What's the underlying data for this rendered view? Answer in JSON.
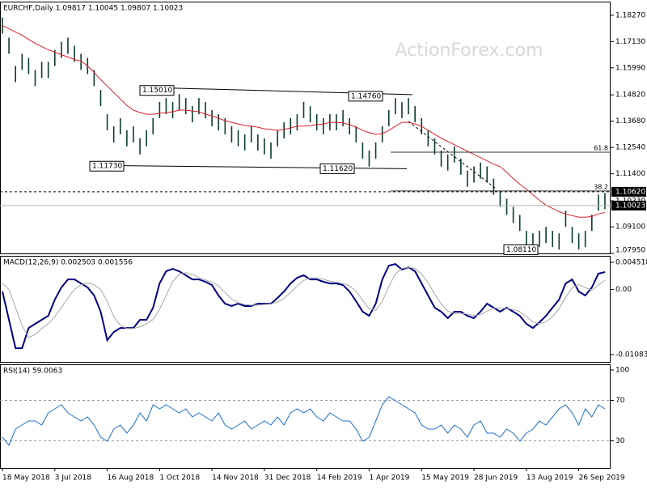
{
  "chart_data": [
    {
      "type": "ohlc",
      "title": "EURCHF,Daily  1.09817 1.10045 1.09807 1.10023",
      "watermark": "ActionForex.com",
      "categories": [
        "18 May 2018",
        null,
        null,
        null,
        null,
        null,
        null,
        null,
        "3 Jul 2018",
        null,
        null,
        null,
        null,
        null,
        null,
        null,
        "16 Aug 2018",
        null,
        null,
        null,
        null,
        null,
        null,
        null,
        "1 Oct 2018",
        null,
        null,
        null,
        null,
        null,
        null,
        null,
        "14 Nov 2018",
        null,
        null,
        null,
        null,
        null,
        null,
        null,
        "31 Dec 2018",
        null,
        null,
        null,
        null,
        null,
        null,
        null,
        "14 Feb 2019",
        null,
        null,
        null,
        null,
        null,
        null,
        null,
        "1 Apr 2019",
        null,
        null,
        null,
        null,
        null,
        null,
        null,
        "15 May 2019",
        null,
        null,
        null,
        null,
        null,
        null,
        null,
        "28 Jun 2019",
        null,
        null,
        null,
        null,
        null,
        null,
        null,
        "13 Aug 2019",
        null,
        null,
        null,
        null,
        null,
        null,
        null,
        "26 Sep 2019",
        null,
        null,
        null,
        null
      ],
      "high": [
        1.1817,
        1.173,
        1.1607,
        1.166,
        1.1642,
        1.159,
        1.1625,
        1.1625,
        1.1677,
        1.1712,
        1.173,
        1.1695,
        1.166,
        1.1642,
        1.159,
        1.1503,
        1.1398,
        1.1346,
        1.1381,
        1.1329,
        1.1346,
        1.1294,
        1.1329,
        1.1381,
        1.1451,
        1.1468,
        1.1451,
        1.1485,
        1.1468,
        1.1433,
        1.1468,
        1.1451,
        1.1416,
        1.1398,
        1.1381,
        1.1346,
        1.1329,
        1.1311,
        1.1346,
        1.1311,
        1.1294,
        1.1276,
        1.1329,
        1.1363,
        1.1381,
        1.1398,
        1.1451,
        1.1433,
        1.1398,
        1.1381,
        1.1398,
        1.1398,
        1.1416,
        1.1381,
        1.1346,
        1.1276,
        1.1241,
        1.1276,
        1.1346,
        1.1416,
        1.1468,
        1.1451,
        1.1468,
        1.1433,
        1.1381,
        1.1329,
        1.1294,
        1.1241,
        1.1224,
        1.1259,
        1.1206,
        1.1154,
        1.1172,
        1.1189,
        1.1172,
        1.1119,
        1.1067,
        1.1032,
        1.0997,
        1.0962,
        1.0893,
        1.0882,
        1.0893,
        1.091,
        1.0893,
        1.0882,
        1.098,
        1.091,
        1.0882,
        1.0893,
        1.0962,
        1.105,
        1.1057
      ],
      "low": [
        1.1747,
        1.166,
        1.1537,
        1.159,
        1.1572,
        1.152,
        1.1555,
        1.1555,
        1.1607,
        1.1642,
        1.166,
        1.1625,
        1.159,
        1.1572,
        1.152,
        1.1433,
        1.1328,
        1.1276,
        1.1311,
        1.1259,
        1.1276,
        1.1224,
        1.1259,
        1.1311,
        1.1381,
        1.1398,
        1.1381,
        1.1415,
        1.1398,
        1.1363,
        1.1398,
        1.1381,
        1.1346,
        1.1328,
        1.1311,
        1.1276,
        1.1259,
        1.1241,
        1.1276,
        1.1241,
        1.1224,
        1.1206,
        1.1259,
        1.1293,
        1.1311,
        1.1328,
        1.1381,
        1.1363,
        1.1328,
        1.1311,
        1.1328,
        1.1328,
        1.1346,
        1.1311,
        1.1276,
        1.1206,
        1.1171,
        1.1206,
        1.1276,
        1.1346,
        1.1398,
        1.1381,
        1.1398,
        1.1363,
        1.1311,
        1.1259,
        1.1224,
        1.1171,
        1.1154,
        1.1189,
        1.1136,
        1.1084,
        1.1102,
        1.1119,
        1.1102,
        1.1049,
        1.0997,
        1.0962,
        1.0927,
        1.0892,
        1.0823,
        1.0812,
        1.0823,
        1.084,
        1.0823,
        1.0812,
        1.091,
        1.084,
        1.0812,
        1.0823,
        1.0892,
        1.098,
        1.0987
      ],
      "bar_color": "#0d3b2e",
      "ma": {
        "color": "#e0202a",
        "values": [
          1.1782,
          1.1768,
          1.1754,
          1.174,
          1.1722,
          1.1705,
          1.1691,
          1.1677,
          1.1667,
          1.1656,
          1.1646,
          1.1635,
          1.1628,
          1.1607,
          1.1579,
          1.1548,
          1.152,
          1.1492,
          1.1464,
          1.1436,
          1.1416,
          1.1405,
          1.1398,
          1.1398,
          1.1402,
          1.1405,
          1.1409,
          1.1416,
          1.1416,
          1.1412,
          1.1409,
          1.1398,
          1.1391,
          1.1381,
          1.137,
          1.1363,
          1.1356,
          1.1349,
          1.1346,
          1.1342,
          1.1335,
          1.1332,
          1.1328,
          1.1332,
          1.1339,
          1.1346,
          1.1346,
          1.1349,
          1.1353,
          1.1356,
          1.1363,
          1.1363,
          1.136,
          1.1353,
          1.1342,
          1.1328,
          1.1318,
          1.1311,
          1.1314,
          1.1328,
          1.1346,
          1.1363,
          1.1363,
          1.1356,
          1.1346,
          1.1328,
          1.1311,
          1.1294,
          1.128,
          1.1266,
          1.1252,
          1.1238,
          1.1224,
          1.121,
          1.1196,
          1.1182,
          1.1171,
          1.1147,
          1.1119,
          1.1095,
          1.1074,
          1.1049,
          1.1025,
          1.1004,
          1.099,
          1.0976,
          1.0966,
          1.0959,
          1.0952,
          1.0952,
          1.0955,
          1.0966,
          1.0973
        ]
      },
      "ylim": [
        1.0795,
        1.1886
      ],
      "yticks": [
        {
          "value": 1.1827,
          "label": "1.18270"
        },
        {
          "value": 1.1713,
          "label": "1.17130"
        },
        {
          "value": 1.1599,
          "label": "1.15990"
        },
        {
          "value": 1.1482,
          "label": "1.14820"
        },
        {
          "value": 1.1368,
          "label": "1.13680"
        },
        {
          "value": 1.1254,
          "label": "1.12540"
        },
        {
          "value": 1.114,
          "label": "1.11400"
        },
        {
          "value": 1.1023,
          "label": "1.10230"
        },
        {
          "value": 1.091,
          "label": "1.09100"
        },
        {
          "value": 1.0795,
          "label": "1.07950"
        }
      ],
      "annotations": [
        "1.15010",
        "1.14760",
        "1.11730",
        "1.11620",
        "1.08110"
      ],
      "fib_labels": [
        "61.8",
        "38.2"
      ],
      "price_tags": [
        "1.10620",
        "1.10023"
      ]
    },
    {
      "type": "line",
      "title": "MACD(12,26,9) 0.002503 0.001556",
      "series": [
        {
          "color": "#000080",
          "values": [
            -0.00034,
            -0.00505,
            -0.00977,
            -0.00977,
            -0.0064,
            -0.00572,
            -0.00505,
            -0.00438,
            -0.00168,
            0.00034,
            0.00168,
            0.00168,
            0.00101,
            0.00034,
            -0.00101,
            -0.0037,
            -0.00842,
            -0.00707,
            -0.0064,
            -0.0064,
            -0.0064,
            -0.00505,
            -0.00505,
            -0.00303,
            0.00101,
            0.00303,
            0.00343,
            0.00303,
            0.00236,
            0.00168,
            0.00168,
            0.00128,
            0.00074,
            -0.00101,
            -0.00236,
            -0.00276,
            -0.00236,
            -0.00276,
            -0.00276,
            -0.00236,
            -0.00236,
            -0.00236,
            -0.00141,
            -0.00034,
            0.00101,
            0.00195,
            0.00236,
            0.00168,
            0.00168,
            0.00128,
            0.00101,
            0.00101,
            0.00074,
            -0.00034,
            -0.00195,
            -0.0037,
            -0.00438,
            -0.00236,
            0.00168,
            0.00397,
            0.00424,
            0.0033,
            0.0037,
            0.00303,
            0.00101,
            -0.00101,
            -0.00303,
            -0.0037,
            -0.00478,
            -0.0037,
            -0.0037,
            -0.00438,
            -0.00478,
            -0.0037,
            -0.00236,
            -0.00303,
            -0.0037,
            -0.00303,
            -0.0037,
            -0.00438,
            -0.00572,
            -0.0064,
            -0.00546,
            -0.00438,
            -0.00303,
            -0.00168,
            0.00101,
            0.00168,
            -0.00034,
            -0.00101,
            0.00034,
            0.00263,
            0.0029
          ]
        },
        {
          "color": "#a8a8a8",
          "values": [
            0.001,
            0.0,
            -0.003,
            -0.006,
            -0.008,
            -0.0075,
            -0.0065,
            -0.0057,
            -0.0045,
            -0.003,
            -0.0014,
            0.0,
            0.0008,
            0.0011,
            0.0008,
            0.0,
            -0.002,
            -0.0045,
            -0.006,
            -0.0065,
            -0.0065,
            -0.0062,
            -0.0057,
            -0.005,
            -0.0033,
            -0.001,
            0.0013,
            0.0025,
            0.0028,
            0.0025,
            0.002,
            0.0016,
            0.0012,
            0.0006,
            -0.0005,
            -0.0016,
            -0.0022,
            -0.0025,
            -0.0026,
            -0.0026,
            -0.0025,
            -0.0024,
            -0.0021,
            -0.0015,
            -0.0005,
            0.0006,
            0.0015,
            0.0019,
            0.0019,
            0.0017,
            0.0014,
            0.0012,
            0.001,
            0.0006,
            -0.0003,
            -0.0018,
            -0.0032,
            -0.0035,
            -0.002,
            0.0005,
            0.0026,
            0.0035,
            0.0037,
            0.0035,
            0.0026,
            0.0011,
            -0.0008,
            -0.0024,
            -0.0036,
            -0.004,
            -0.004,
            -0.0041,
            -0.0043,
            -0.0042,
            -0.0036,
            -0.0031,
            -0.0031,
            -0.0032,
            -0.0033,
            -0.0037,
            -0.0045,
            -0.0054,
            -0.0057,
            -0.0054,
            -0.0045,
            -0.0032,
            -0.0013,
            0.0003,
            0.0008,
            0.0003,
            -0.0001,
            0.0007,
            0.00156
          ]
        }
      ],
      "ylim": [
        -0.012047,
        0.005596
      ],
      "yticks": [
        0.004518,
        {
          "value": 0,
          "label": "0.00"
        },
        -0.010835
      ]
    },
    {
      "type": "line",
      "title": "RSI(14) 59.0063",
      "series": [
        {
          "color": "#1e6fd0",
          "values": [
            33.6,
            25.6,
            41.6,
            45.6,
            49.6,
            49.6,
            45.6,
            57.6,
            61.6,
            65.6,
            57.6,
            53.6,
            49.6,
            53.6,
            45.6,
            33.6,
            29.6,
            41.6,
            45.6,
            37.6,
            45.6,
            57.6,
            49.6,
            65.6,
            61.6,
            65.6,
            61.6,
            57.6,
            61.6,
            53.6,
            57.6,
            53.6,
            49.6,
            57.6,
            45.6,
            41.6,
            45.6,
            49.6,
            41.6,
            45.6,
            49.6,
            45.6,
            53.6,
            45.6,
            57.6,
            61.6,
            57.6,
            61.6,
            53.6,
            49.6,
            57.6,
            53.6,
            49.6,
            49.6,
            41.6,
            29.6,
            33.6,
            49.6,
            65.6,
            73.6,
            69.6,
            65.6,
            61.6,
            57.6,
            45.6,
            41.6,
            41.6,
            45.6,
            37.6,
            45.6,
            41.6,
            33.6,
            45.6,
            49.6,
            37.6,
            37.6,
            33.6,
            41.6,
            37.6,
            29.6,
            37.6,
            41.6,
            49.6,
            45.6,
            53.6,
            61.6,
            65.6,
            57.6,
            45.6,
            61.6,
            53.6,
            65.6,
            61.6
          ]
        }
      ],
      "ylim": [
        3.2,
        105.6
      ],
      "yticks": [
        100,
        70,
        30
      ],
      "levels": [
        70,
        30
      ]
    }
  ]
}
